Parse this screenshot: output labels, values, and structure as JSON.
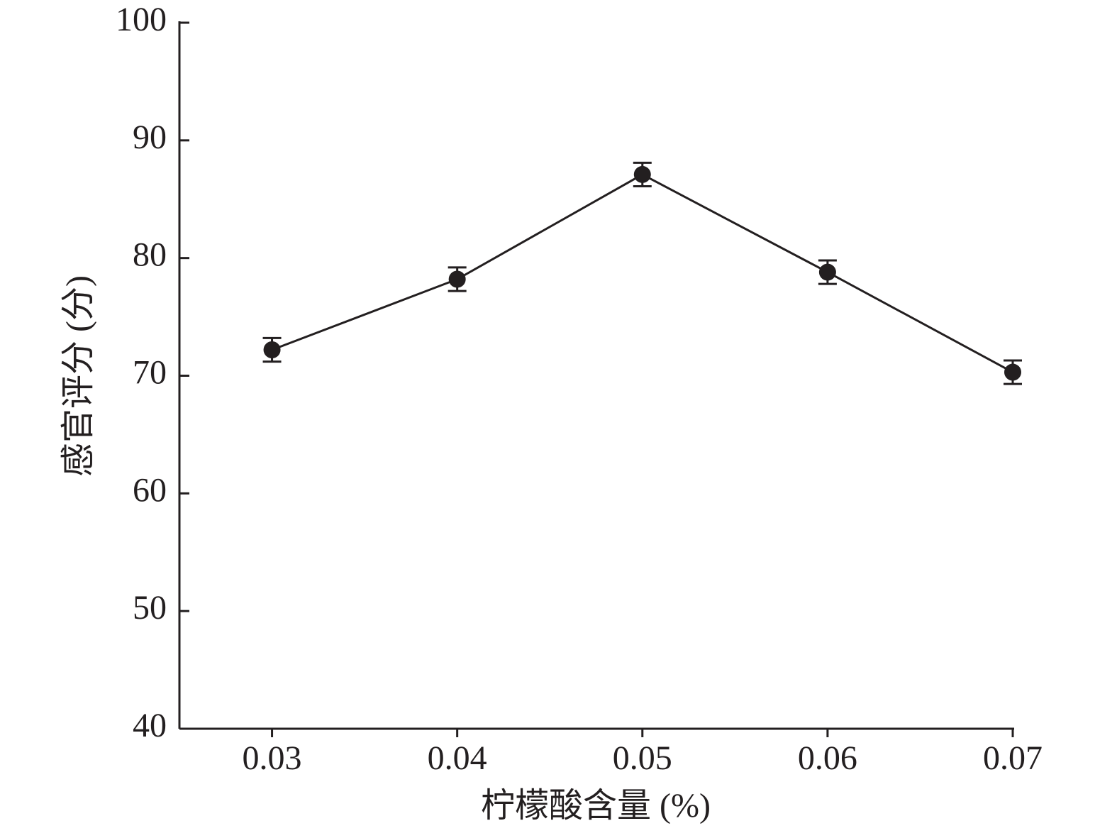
{
  "chart_data": {
    "type": "line",
    "x_label": "柠檬酸含量 (%)",
    "y_label": "感官评分 (分)",
    "x": [
      0.03,
      0.04,
      0.05,
      0.06,
      0.07
    ],
    "series": [
      {
        "color": "#231f20",
        "values": [
          72.2,
          78.2,
          87.1,
          78.8,
          70.3
        ],
        "errors": [
          1.0,
          1.0,
          1.0,
          1.0,
          1.0
        ]
      }
    ],
    "xlim": [
      0.025,
      0.07
    ],
    "xticks": [
      0.03,
      0.04,
      0.05,
      0.06,
      0.07
    ],
    "ylim": [
      40,
      100
    ],
    "yticks": [
      40,
      50,
      60,
      70,
      80,
      90,
      100
    ],
    "grid": false
  }
}
